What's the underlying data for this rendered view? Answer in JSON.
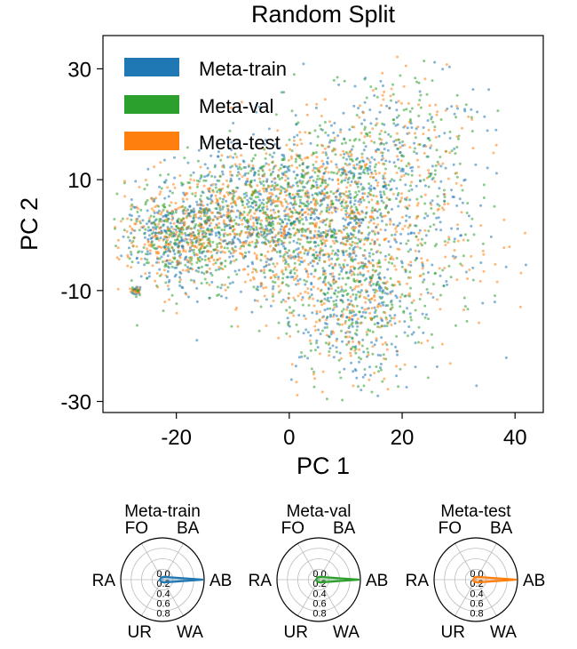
{
  "chart_data": [
    {
      "type": "scatter",
      "title": "Random Split",
      "xlabel": "PC 1",
      "ylabel": "PC 2",
      "xlim": [
        -33,
        45
      ],
      "ylim": [
        -32,
        36
      ],
      "xticks": [
        -20,
        0,
        20,
        40
      ],
      "yticks": [
        30,
        10,
        -10,
        -30
      ],
      "grid": false,
      "legend_position": "top-left",
      "series": [
        {
          "name": "Meta-train",
          "color": "#1f77b4"
        },
        {
          "name": "Meta-val",
          "color": "#2ca02c"
        },
        {
          "name": "Meta-test",
          "color": "#ff7f0e"
        }
      ],
      "cluster_centers": [
        {
          "x": -20,
          "y": 0
        },
        {
          "x": -5,
          "y": 3
        },
        {
          "x": 8,
          "y": 5
        },
        {
          "x": 12,
          "y": -12
        },
        {
          "x": 20,
          "y": 20
        },
        {
          "x": -27,
          "y": -10
        }
      ]
    },
    {
      "type": "radar",
      "title": "Meta-train",
      "color": "#1f77b4",
      "axes": [
        "AB",
        "BA",
        "FO",
        "RA",
        "UR",
        "WA"
      ],
      "rticks": [
        "0.0",
        "0.2",
        "0.4",
        "0.6",
        "0.8"
      ],
      "values": {
        "AB": 0.78,
        "BA": 0.06,
        "FO": 0.05,
        "RA": 0.05,
        "UR": 0.05,
        "WA": 0.06
      }
    },
    {
      "type": "radar",
      "title": "Meta-val",
      "color": "#2ca02c",
      "axes": [
        "AB",
        "BA",
        "FO",
        "RA",
        "UR",
        "WA"
      ],
      "rticks": [
        "0.0",
        "0.2",
        "0.4",
        "0.6",
        "0.8"
      ],
      "values": {
        "AB": 0.78,
        "BA": 0.06,
        "FO": 0.05,
        "RA": 0.05,
        "UR": 0.05,
        "WA": 0.06
      }
    },
    {
      "type": "radar",
      "title": "Meta-test",
      "color": "#ff7f0e",
      "axes": [
        "AB",
        "BA",
        "FO",
        "RA",
        "UR",
        "WA"
      ],
      "rticks": [
        "0.0",
        "0.2",
        "0.4",
        "0.6",
        "0.8"
      ],
      "values": {
        "AB": 0.78,
        "BA": 0.06,
        "FO": 0.05,
        "RA": 0.05,
        "UR": 0.05,
        "WA": 0.06
      }
    }
  ]
}
